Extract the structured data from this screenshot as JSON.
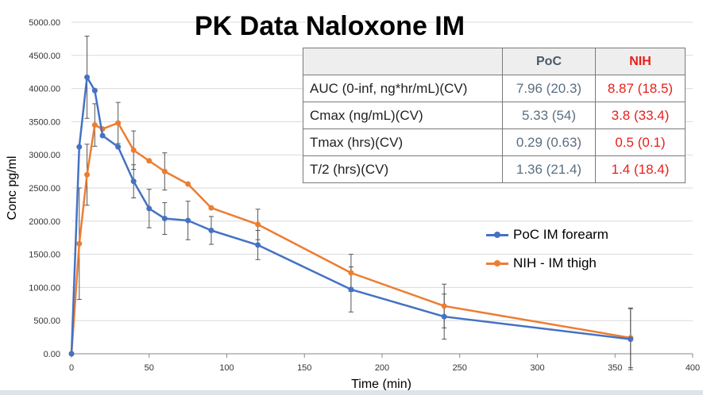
{
  "chart_data": {
    "type": "line",
    "title": "PK Data Naloxone IM",
    "xlabel": "Time (min)",
    "ylabel": "Conc pg/ml",
    "xlim": [
      0,
      400
    ],
    "ylim": [
      0,
      5000
    ],
    "xticks": [
      0,
      50,
      100,
      150,
      200,
      250,
      300,
      350,
      400
    ],
    "yticks": [
      0,
      500,
      1000,
      1500,
      2000,
      2500,
      3000,
      3500,
      4000,
      4500,
      5000
    ],
    "ytick_labels": [
      "0.00",
      "500.00",
      "1000.00",
      "1500.00",
      "2000.00",
      "2500.00",
      "3000.00",
      "3500.00",
      "4000.00",
      "4500.00",
      "5000.00"
    ],
    "legend_position": "right",
    "series": [
      {
        "name": "PoC IM forearm",
        "color": "#4472c4",
        "x": [
          0,
          5,
          10,
          15,
          20,
          30,
          40,
          50,
          60,
          75,
          90,
          120,
          180,
          240,
          360
        ],
        "y": [
          0,
          3120,
          4170,
          3970,
          3290,
          3120,
          2600,
          2190,
          2040,
          2010,
          1860,
          1640,
          970,
          560,
          220
        ],
        "err": [
          0,
          0,
          620,
          0,
          0,
          0,
          250,
          290,
          240,
          290,
          210,
          220,
          340,
          340,
          460
        ]
      },
      {
        "name": "NIH - IM thigh",
        "color": "#ed7d31",
        "x": [
          0,
          5,
          10,
          15,
          20,
          30,
          40,
          50,
          60,
          75,
          90,
          120,
          180,
          240,
          360
        ],
        "y": [
          0,
          1660,
          2700,
          3450,
          3390,
          3480,
          3070,
          2910,
          2750,
          2560,
          2200,
          1950,
          1220,
          720,
          240
        ],
        "err": [
          0,
          840,
          460,
          320,
          0,
          310,
          290,
          0,
          280,
          0,
          0,
          230,
          280,
          330,
          450
        ]
      }
    ]
  },
  "table": {
    "headers": [
      "",
      "PoC",
      "NIH"
    ],
    "rows": [
      [
        "AUC (0-inf, ng*hr/mL)(CV)",
        "7.96 (20.3)",
        "8.87 (18.5)"
      ],
      [
        "Cmax (ng/mL)(CV)",
        "5.33 (54)",
        "3.8 (33.4)"
      ],
      [
        "Tmax (hrs)(CV)",
        "0.29 (0.63)",
        "0.5 (0.1)"
      ],
      [
        "T/2 (hrs)(CV)",
        "1.36 (21.4)",
        "1.4 (18.4)"
      ]
    ]
  }
}
